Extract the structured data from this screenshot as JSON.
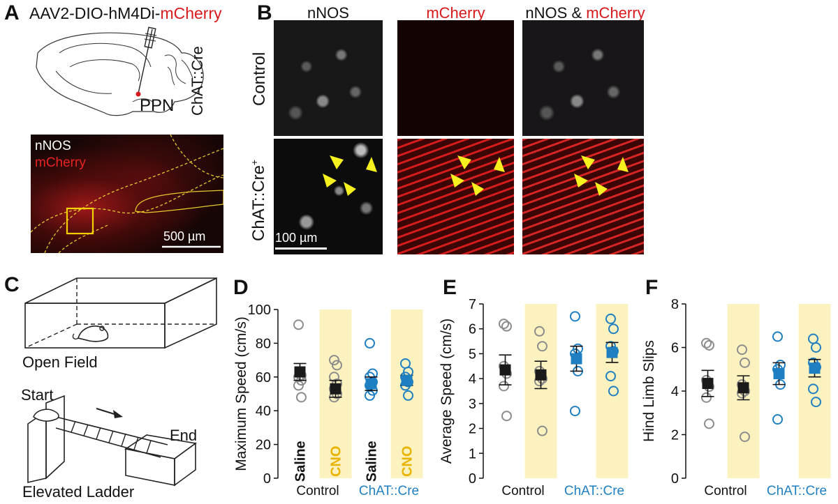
{
  "panel_a": {
    "letter": "A",
    "title_prefix": "AAV2-DIO-hM4Di-",
    "title_highlight": "mCherry",
    "side_label": "ChAT::Cre",
    "region_label": "PPN",
    "legend_line1": "nNOS",
    "legend_line2": "mCherry",
    "scale_bar": "500 µm",
    "colors": {
      "highlight": "#d7191c",
      "roi_box": "#f5d000"
    }
  },
  "panel_b": {
    "letter": "B",
    "col_headers": {
      "c1": "nNOS",
      "c2": "mCherry",
      "c3_prefix": "nNOS & ",
      "c3_highlight": "mCherry"
    },
    "row_labels": {
      "r1": "Control",
      "r2": "ChAT::Cre",
      "r2_sup": "+"
    },
    "scale_bar": "100 µm"
  },
  "panel_c": {
    "letter": "C",
    "open_field_label": "Open Field",
    "start_label": "Start",
    "end_label": "End",
    "ladder_label": "Elevated Ladder"
  },
  "chart_data": [
    {
      "panel": "D",
      "type": "scatter",
      "ylabel": "Maximum Speed (cm/s)",
      "ylim": [
        0,
        100
      ],
      "yticks": [
        0,
        20,
        40,
        60,
        80,
        100
      ],
      "groups": [
        "Control",
        "ChAT::Cre"
      ],
      "conditions": [
        "Saline",
        "CNO",
        "Saline",
        "CNO"
      ],
      "highlight_conditions": [
        false,
        true,
        false,
        true
      ],
      "series": [
        {
          "group": "Control",
          "condition": "Saline",
          "mean": 63,
          "sem": 5,
          "points": [
            91,
            61,
            60,
            58,
            55,
            48
          ]
        },
        {
          "group": "Control",
          "condition": "CNO",
          "mean": 53,
          "sem": 5,
          "points": [
            70,
            67,
            60,
            56,
            53,
            50,
            48
          ]
        },
        {
          "group": "ChAT::Cre",
          "condition": "Saline",
          "mean": 56,
          "sem": 4,
          "points": [
            80,
            62,
            60,
            57,
            55,
            52,
            49
          ]
        },
        {
          "group": "ChAT::Cre",
          "condition": "CNO",
          "mean": 58,
          "sem": 3,
          "points": [
            68,
            63,
            60,
            57,
            55,
            49
          ]
        }
      ]
    },
    {
      "panel": "E",
      "type": "scatter",
      "ylabel": "Average Speed (cm/s)",
      "ylim": [
        0,
        7
      ],
      "yticks": [
        0,
        1,
        2,
        3,
        4,
        5,
        6,
        7
      ],
      "groups": [
        "Control",
        "ChAT::Cre"
      ],
      "series": [
        {
          "group": "Control",
          "condition": "Saline",
          "mean": 4.35,
          "sem": 0.6,
          "points": [
            6.2,
            6.1,
            4.5,
            4.2,
            3.7,
            2.5
          ]
        },
        {
          "group": "Control",
          "condition": "CNO",
          "mean": 4.15,
          "sem": 0.55,
          "points": [
            5.9,
            5.3,
            4.3,
            4.0,
            3.9,
            1.9
          ]
        },
        {
          "group": "ChAT::Cre",
          "condition": "Saline",
          "mean": 4.8,
          "sem": 0.5,
          "points": [
            6.5,
            5.2,
            5.0,
            4.3,
            2.7
          ]
        },
        {
          "group": "ChAT::Cre",
          "condition": "CNO",
          "mean": 5.05,
          "sem": 0.4,
          "points": [
            6.4,
            6.0,
            5.3,
            5.1,
            4.1,
            3.5
          ]
        }
      ]
    },
    {
      "panel": "F",
      "type": "scatter",
      "ylabel": "Hind Limb Slips",
      "ylim": [
        0,
        8
      ],
      "yticks": [
        0,
        2,
        4,
        6,
        8
      ],
      "groups": [
        "Control",
        "ChAT::Cre"
      ],
      "series": [
        {
          "group": "Control",
          "condition": "Saline",
          "mean": 4.35,
          "sem": 0.6,
          "points": [
            6.2,
            6.1,
            4.5,
            4.2,
            3.7,
            2.5
          ]
        },
        {
          "group": "Control",
          "condition": "CNO",
          "mean": 4.15,
          "sem": 0.55,
          "points": [
            5.9,
            5.3,
            4.3,
            4.0,
            3.9,
            1.9
          ]
        },
        {
          "group": "ChAT::Cre",
          "condition": "Saline",
          "mean": 4.8,
          "sem": 0.5,
          "points": [
            6.5,
            5.2,
            5.0,
            4.3,
            2.7
          ]
        },
        {
          "group": "ChAT::Cre",
          "condition": "CNO",
          "mean": 5.05,
          "sem": 0.4,
          "points": [
            6.4,
            6.0,
            5.3,
            5.1,
            4.1,
            3.5
          ]
        }
      ]
    }
  ],
  "colors": {
    "control": "#1a1a1a",
    "control_points": "#8c8c8c",
    "chat": "#1f7fc1",
    "cno_bg": "#fbf2bf",
    "cno_text": "#e8b400"
  }
}
